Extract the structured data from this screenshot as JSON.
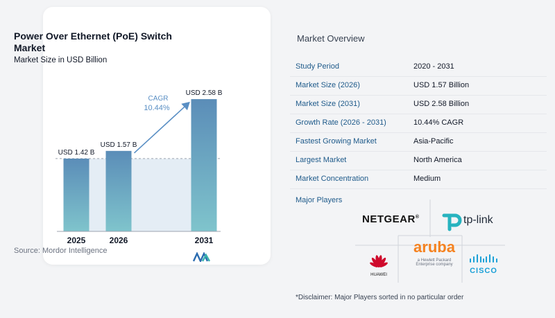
{
  "title": "Power Over Ethernet (PoE) Switch Market",
  "subtitle": "Market Size in USD Billion",
  "source": "Source: Mordor Intelligence",
  "cagr_label": "CAGR",
  "cagr_value": "10.44%",
  "colors": {
    "bar_top": "#5b8db8",
    "bar_bottom": "#7fc4cc",
    "arrow": "#5a8fc4",
    "accent": "#1e5a8a"
  },
  "chart_data": {
    "type": "bar",
    "categories": [
      "2025",
      "2026",
      "2031"
    ],
    "values": [
      1.42,
      1.57,
      2.58
    ],
    "value_labels": [
      "USD 1.42 B",
      "USD 1.57 B",
      "USD 2.58 B"
    ],
    "ylabel": "",
    "xlabel": "",
    "annotation": "CAGR 10.44%"
  },
  "overview": {
    "title": "Market Overview",
    "rows": [
      {
        "key": "Study Period",
        "value": "2020 - 2031"
      },
      {
        "key": "Market Size (2026)",
        "value": "USD 1.57 Billion"
      },
      {
        "key": "Market Size (2031)",
        "value": "USD 2.58 Billion"
      },
      {
        "key": "Growth Rate (2026 - 2031)",
        "value": "10.44% CAGR"
      },
      {
        "key": "Fastest Growing Market",
        "value": "Asia-Pacific"
      },
      {
        "key": "Largest Market",
        "value": "North America"
      },
      {
        "key": "Market Concentration",
        "value": "Medium"
      }
    ]
  },
  "players": {
    "title": "Major Players",
    "netgear": "NETGEAR",
    "netgear_mark": "®",
    "tplink": "tp-link",
    "aruba": "aruba",
    "aruba_sub1": "a Hewlett Packard",
    "aruba_sub2": "Enterprise company",
    "huawei": "HUAWEI",
    "cisco": "CISCO"
  },
  "disclaimer": "*Disclaimer: Major Players sorted in no particular order"
}
